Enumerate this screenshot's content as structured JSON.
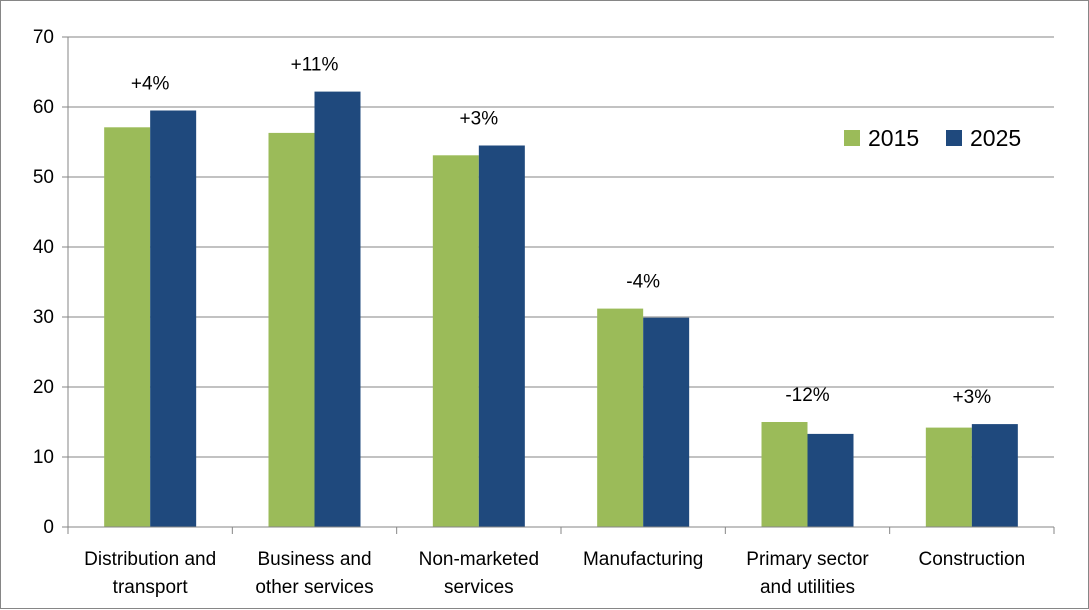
{
  "chart_data": {
    "type": "bar",
    "categories": [
      [
        "Distribution and",
        "transport"
      ],
      [
        "Business and",
        "other services"
      ],
      [
        "Non-marketed",
        "services"
      ],
      [
        "Manufacturing"
      ],
      [
        "Primary sector",
        "and utilities"
      ],
      [
        "Construction"
      ]
    ],
    "series": [
      {
        "name": "2015",
        "color": "#9BBB59",
        "values": [
          57.1,
          56.3,
          53.1,
          31.2,
          15.0,
          14.2
        ]
      },
      {
        "name": "2025",
        "color": "#1F497D",
        "values": [
          59.5,
          62.2,
          54.5,
          29.9,
          13.3,
          14.7
        ]
      }
    ],
    "change_labels": [
      "+4%",
      "+11%",
      "+3%",
      "-4%",
      "-12%",
      "+3%"
    ],
    "ylim": [
      0,
      70
    ],
    "yticks": [
      0,
      10,
      20,
      30,
      40,
      50,
      60,
      70
    ],
    "grid": true,
    "legend": "top-right",
    "title": "",
    "xlabel": "",
    "ylabel": ""
  }
}
